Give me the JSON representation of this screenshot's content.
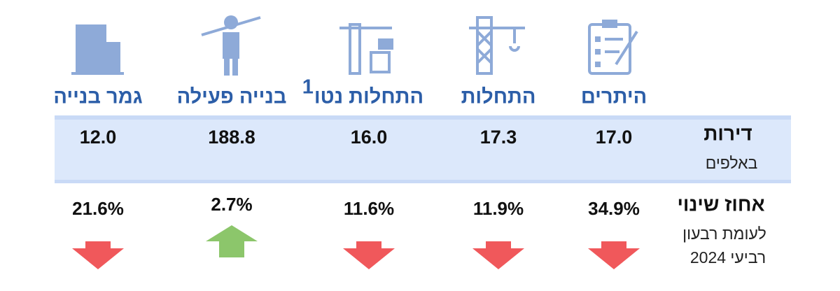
{
  "row_labels": {
    "units": {
      "title": "דירות",
      "subtitle": "באלפים"
    },
    "change": {
      "title": "אחוז שינוי",
      "subtitle": "לעומת רבעון",
      "period": "רביעי 2024"
    }
  },
  "columns": [
    {
      "title": "היתרים",
      "value": "17.0",
      "change": "34.9%",
      "direction": "down"
    },
    {
      "title": "התחלות",
      "value": "17.3",
      "change": "11.9%",
      "direction": "down"
    },
    {
      "title": "התחלות נטו",
      "footnote": "1",
      "value": "16.0",
      "change": "11.6%",
      "direction": "down"
    },
    {
      "title": "בנייה פעילה",
      "value": "188.8",
      "change": "2.7%",
      "direction": "up"
    },
    {
      "title": "גמר בנייה",
      "value": "12.0",
      "change": "21.6%",
      "direction": "down"
    }
  ]
}
